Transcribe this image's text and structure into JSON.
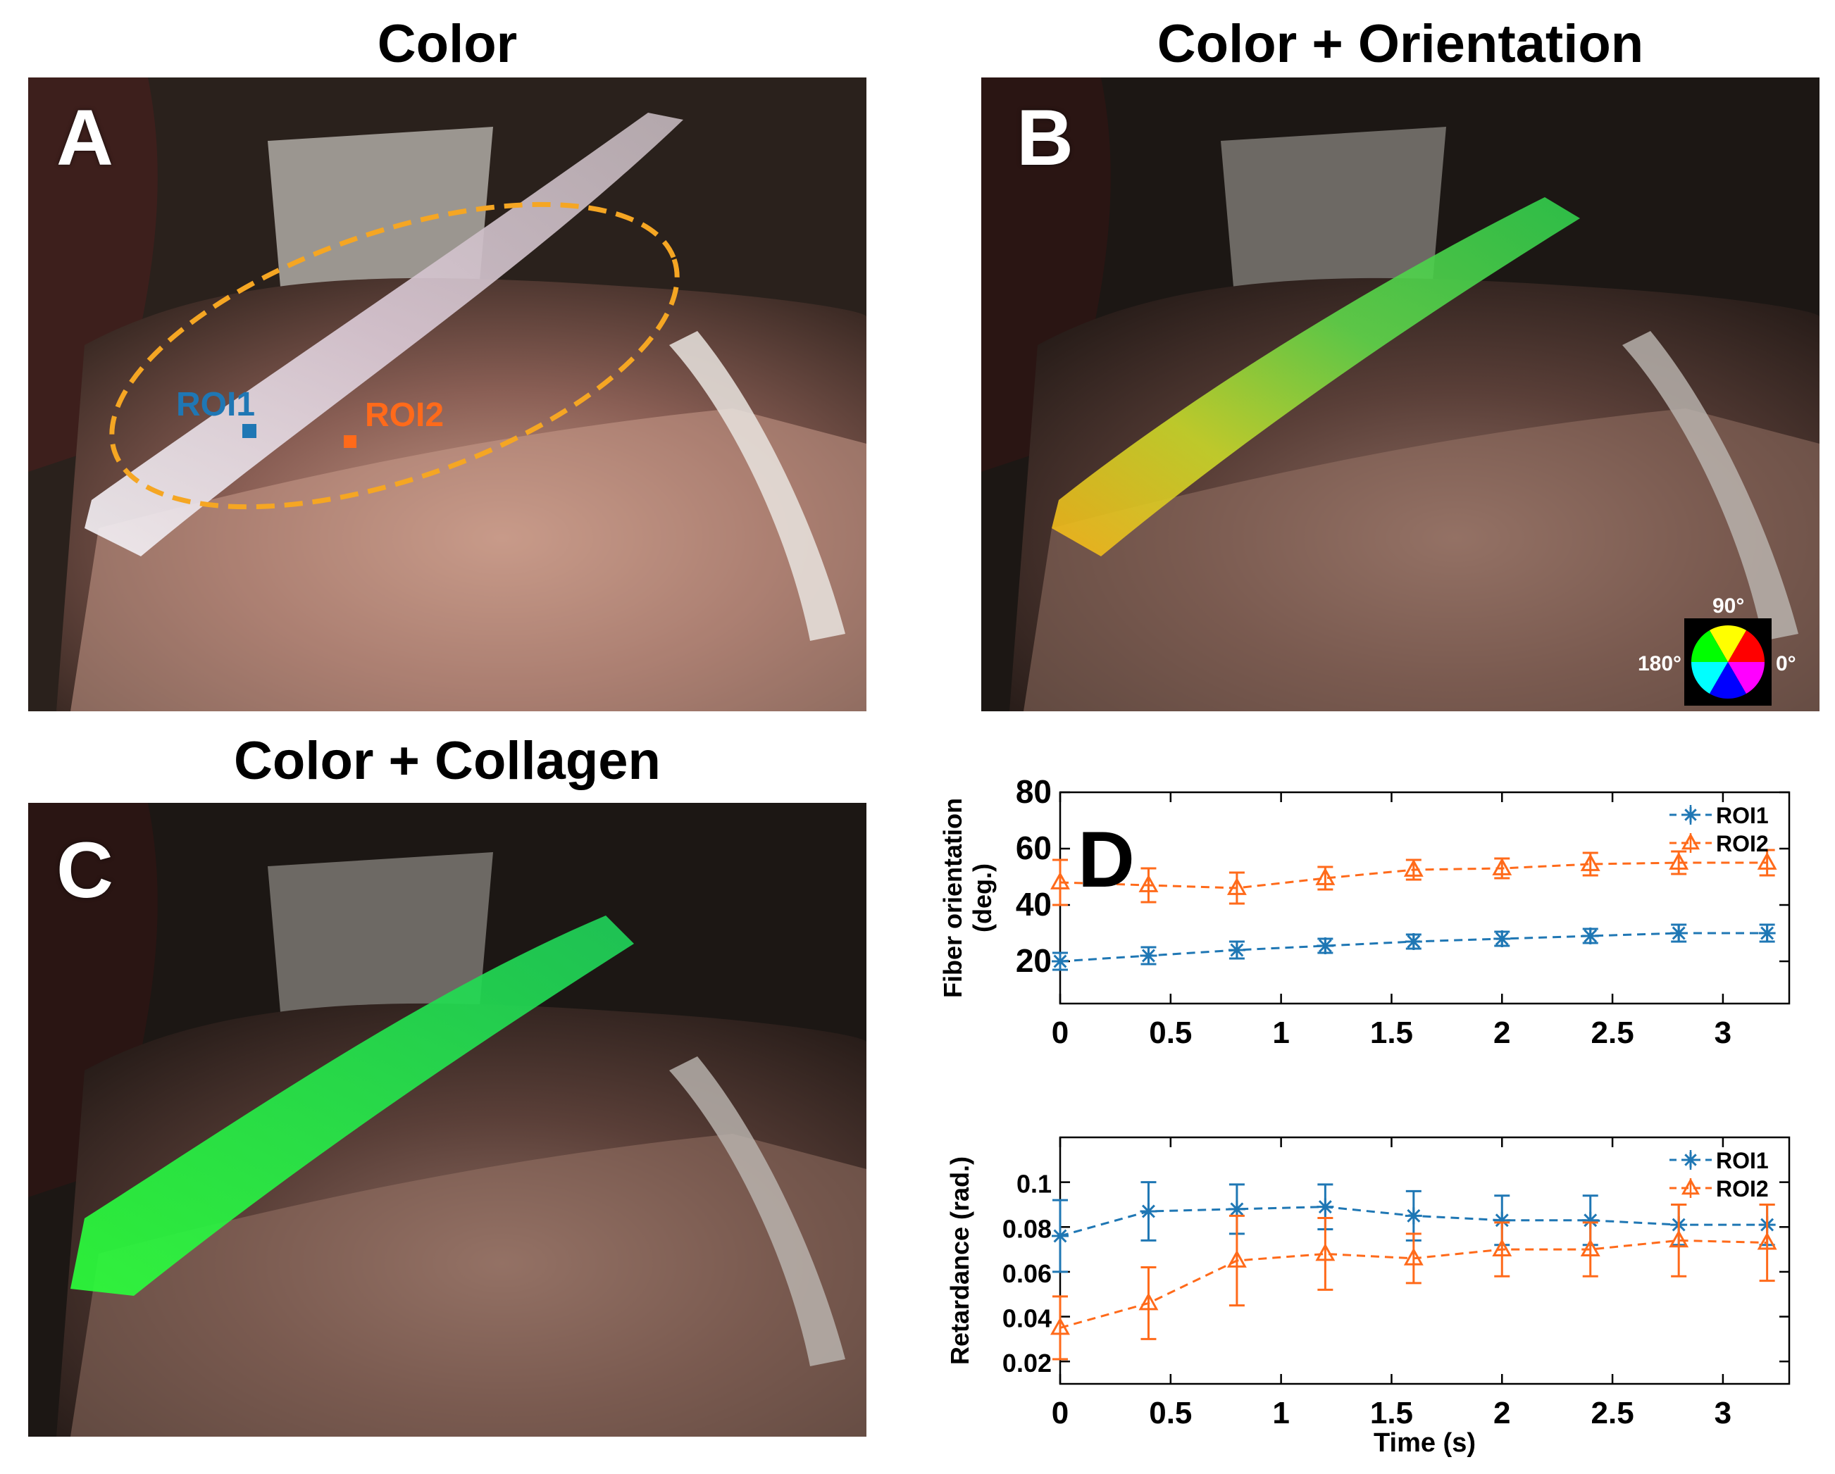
{
  "figure": {
    "panels": {
      "A": {
        "letter": "A",
        "title": "Color",
        "roi1_label": "ROI1",
        "roi2_label": "ROI2"
      },
      "B": {
        "letter": "B",
        "title": "Color + Orientation",
        "color_wheel": {
          "top": "90°",
          "left": "180°",
          "right": "0°"
        }
      },
      "C": {
        "letter": "C",
        "title": "Color + Collagen"
      },
      "D": {
        "letter": "D"
      }
    },
    "colors": {
      "roi1": "#1f77b4",
      "roi2": "#ff6a1a",
      "ellipse": "#f5a623"
    }
  },
  "chart_data": [
    {
      "type": "line",
      "title": "",
      "xlabel": "",
      "ylabel": "Fiber orientation (deg.)",
      "ylabel_lines": [
        "Fiber orientation",
        "(deg.)"
      ],
      "xlim": [
        0,
        3.3
      ],
      "ylim": [
        5,
        80
      ],
      "xticks": [
        0,
        0.5,
        1,
        1.5,
        2,
        2.5,
        3
      ],
      "xtick_labels": [
        "0",
        "0.5",
        "1",
        "1.5",
        "2",
        "2.5",
        "3"
      ],
      "yticks": [
        20,
        40,
        60,
        80
      ],
      "ytick_labels": [
        "20",
        "40",
        "60",
        "80"
      ],
      "x": [
        0,
        0.4,
        0.8,
        1.2,
        1.6,
        2.0,
        2.4,
        2.8,
        3.2
      ],
      "series": [
        {
          "name": "ROI1",
          "marker": "star",
          "color": "#1f77b4",
          "values": [
            20,
            22,
            24,
            25.5,
            27,
            28,
            29,
            30,
            30
          ],
          "errors": [
            3,
            3,
            3,
            2.5,
            2.5,
            2.5,
            2.5,
            3,
            3
          ]
        },
        {
          "name": "ROI2",
          "marker": "triangle",
          "color": "#ff6a1a",
          "values": [
            48,
            47,
            46,
            49.5,
            52.5,
            53,
            54.5,
            55,
            55
          ],
          "errors": [
            8,
            6,
            5.5,
            4,
            3.5,
            3.5,
            4,
            4,
            4.5
          ]
        }
      ],
      "legend": "top-right"
    },
    {
      "type": "line",
      "title": "",
      "xlabel": "Time (s)",
      "ylabel": "Retardance (rad.)",
      "xlim": [
        0,
        3.3
      ],
      "ylim": [
        0.01,
        0.12
      ],
      "xticks": [
        0,
        0.5,
        1,
        1.5,
        2,
        2.5,
        3
      ],
      "xtick_labels": [
        "0",
        "0.5",
        "1",
        "1.5",
        "2",
        "2.5",
        "3"
      ],
      "yticks": [
        0.02,
        0.04,
        0.06,
        0.08,
        0.1
      ],
      "ytick_labels": [
        "0.02",
        "0.04",
        "0.06",
        "0.08",
        "0.1"
      ],
      "x": [
        0,
        0.4,
        0.8,
        1.2,
        1.6,
        2.0,
        2.4,
        2.8,
        3.2
      ],
      "series": [
        {
          "name": "ROI1",
          "marker": "star",
          "color": "#1f77b4",
          "values": [
            0.076,
            0.087,
            0.088,
            0.089,
            0.085,
            0.083,
            0.083,
            0.081,
            0.081
          ],
          "errors": [
            0.016,
            0.013,
            0.011,
            0.01,
            0.011,
            0.011,
            0.011,
            0.009,
            0.009
          ]
        },
        {
          "name": "ROI2",
          "marker": "triangle",
          "color": "#ff6a1a",
          "values": [
            0.035,
            0.046,
            0.065,
            0.068,
            0.066,
            0.07,
            0.07,
            0.074,
            0.073
          ],
          "errors": [
            0.014,
            0.016,
            0.02,
            0.016,
            0.011,
            0.012,
            0.012,
            0.016,
            0.017
          ]
        }
      ],
      "legend": "top-right"
    }
  ]
}
